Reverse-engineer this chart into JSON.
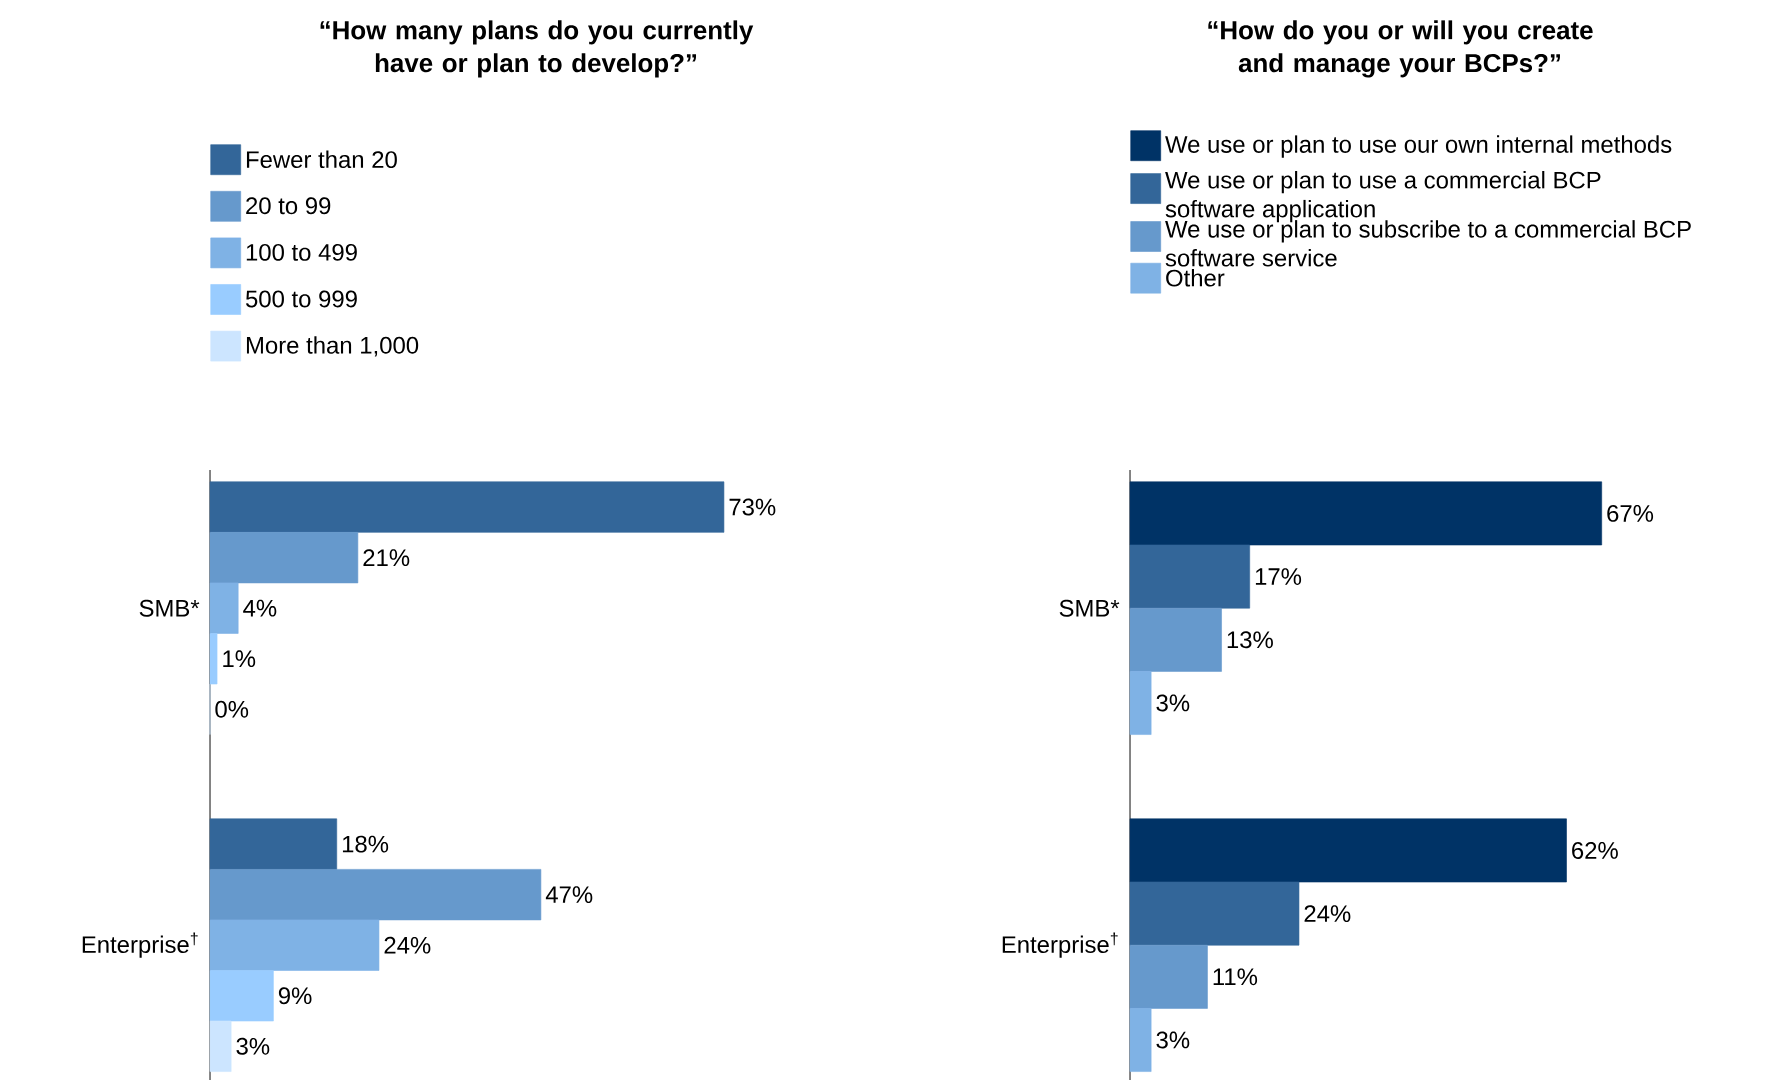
{
  "chart_data": [
    {
      "type": "bar",
      "orientation": "horizontal",
      "title": "“How many plans do you currently have or plan to develop?”",
      "categories": [
        "SMB*",
        "Enterprise$^{†}$"
      ],
      "legend": "top",
      "series": [
        {
          "name": "Fewer than 20",
          "color": "#336699",
          "values": [
            73,
            18
          ],
          "value_labels": [
            "73%",
            "18%"
          ]
        },
        {
          "name": "20 to 99",
          "color": "#6699cc",
          "values": [
            21,
            47
          ],
          "value_labels": [
            "21%",
            "47%"
          ]
        },
        {
          "name": "100 to 499",
          "color": "#7fb2e5",
          "values": [
            4,
            24
          ],
          "value_labels": [
            "4%",
            "24%"
          ]
        },
        {
          "name": "500 to 999",
          "color": "#99ccff",
          "values": [
            1,
            9
          ],
          "value_labels": [
            "1%",
            "9%"
          ]
        },
        {
          "name": "More than 1,000",
          "color": "#cce5ff",
          "values": [
            0,
            3
          ],
          "value_labels": [
            "0%",
            "3%"
          ]
        }
      ]
    },
    {
      "type": "bar",
      "orientation": "horizontal",
      "title": "“How do you or will you create and manage your BCPs?”",
      "categories": [
        "SMB*",
        "Enterprise$^{†}$"
      ],
      "legend": "top",
      "series": [
        {
          "name": "We use or plan to use our own internal methods",
          "color": "#003366",
          "values": [
            67,
            62
          ],
          "value_labels": [
            "67%",
            "62%"
          ]
        },
        {
          "name": "We use or plan to use a commercial BCP software application",
          "color": "#336699",
          "values": [
            17,
            24
          ],
          "value_labels": [
            "17%",
            "24%"
          ]
        },
        {
          "name": "We use or plan to subscribe to a commercial BCP software service",
          "color": "#6699cc",
          "values": [
            13,
            11
          ],
          "value_labels": [
            "13%",
            "11%"
          ]
        },
        {
          "name": "Other",
          "color": "#7fb2e5",
          "values": [
            3,
            3
          ],
          "value_labels": [
            "3%",
            "3%"
          ]
        }
      ]
    }
  ]
}
